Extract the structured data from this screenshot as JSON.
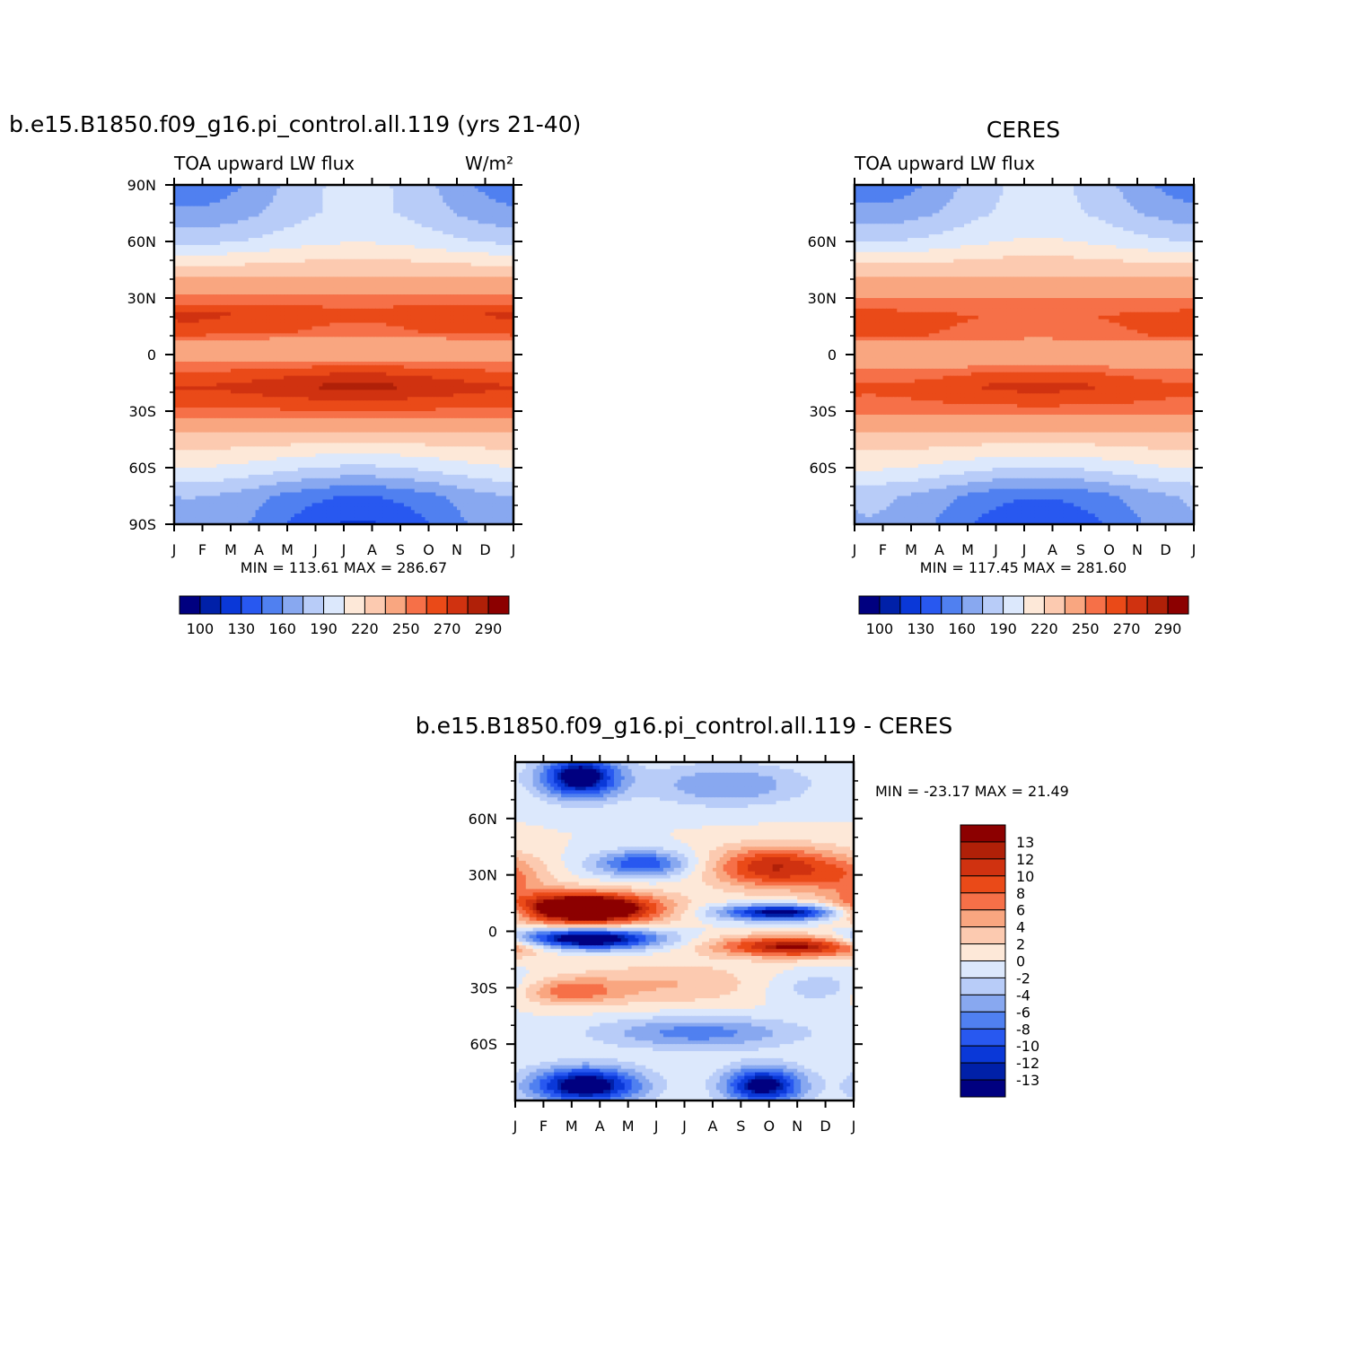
{
  "chart_data": [
    {
      "type": "heatmap",
      "title": "b.e15.B1850.f09_g16.pi_control.all.119 (yrs 21-40)",
      "subtitle_left": "TOA upward LW flux",
      "units": "W/m²",
      "stats": "MIN =  113.61  MAX =  286.67",
      "x_ticks": [
        "J",
        "F",
        "M",
        "A",
        "M",
        "J",
        "J",
        "A",
        "S",
        "O",
        "N",
        "D",
        "J"
      ],
      "y_ticks": [
        "90N",
        "60N",
        "30N",
        "0",
        "30S",
        "60S",
        "90S"
      ],
      "lat_profile": [
        {
          "lat": 90,
          "v": 172
        },
        {
          "lat": 75,
          "v": 178
        },
        {
          "lat": 60,
          "v": 195
        },
        {
          "lat": 45,
          "v": 228
        },
        {
          "lat": 30,
          "v": 252
        },
        {
          "lat": 22,
          "v": 268
        },
        {
          "lat": 12,
          "v": 262
        },
        {
          "lat": 5,
          "v": 238
        },
        {
          "lat": 0,
          "v": 240
        },
        {
          "lat": -8,
          "v": 262
        },
        {
          "lat": -17,
          "v": 277
        },
        {
          "lat": -28,
          "v": 262
        },
        {
          "lat": -40,
          "v": 238
        },
        {
          "lat": -52,
          "v": 212
        },
        {
          "lat": -62,
          "v": 192
        },
        {
          "lat": -75,
          "v": 160
        },
        {
          "lat": -90,
          "v": 150
        }
      ],
      "colorbar": {
        "colors": [
          "#000080",
          "#0020a8",
          "#0a38d8",
          "#2858f0",
          "#5080f0",
          "#88a8f0",
          "#b8ccf8",
          "#dce8fc",
          "#fde8d8",
          "#fccab0",
          "#f9a680",
          "#f67048",
          "#ea4a18",
          "#d03210",
          "#b02008",
          "#8c0000"
        ],
        "labels": [
          "100",
          "130",
          "160",
          "190",
          "220",
          "250",
          "270",
          "290"
        ]
      }
    },
    {
      "type": "heatmap",
      "title": "CERES",
      "subtitle_left": "TOA upward LW flux",
      "stats": "MIN =  117.45  MAX =  281.60",
      "x_ticks": [
        "J",
        "F",
        "M",
        "A",
        "M",
        "J",
        "J",
        "A",
        "S",
        "O",
        "N",
        "D",
        "J"
      ],
      "y_ticks": [
        "60N",
        "30N",
        "0",
        "30S",
        "60S"
      ],
      "lat_profile": [
        {
          "lat": 90,
          "v": 172
        },
        {
          "lat": 75,
          "v": 180
        },
        {
          "lat": 60,
          "v": 198
        },
        {
          "lat": 45,
          "v": 230
        },
        {
          "lat": 30,
          "v": 250
        },
        {
          "lat": 20,
          "v": 262
        },
        {
          "lat": 10,
          "v": 258
        },
        {
          "lat": 3,
          "v": 236
        },
        {
          "lat": -3,
          "v": 240
        },
        {
          "lat": -10,
          "v": 258
        },
        {
          "lat": -17,
          "v": 268
        },
        {
          "lat": -28,
          "v": 258
        },
        {
          "lat": -40,
          "v": 236
        },
        {
          "lat": -52,
          "v": 214
        },
        {
          "lat": -62,
          "v": 194
        },
        {
          "lat": -75,
          "v": 162
        },
        {
          "lat": -90,
          "v": 152
        }
      ],
      "colorbar": {
        "colors": [
          "#000080",
          "#0020a8",
          "#0a38d8",
          "#2858f0",
          "#5080f0",
          "#88a8f0",
          "#b8ccf8",
          "#dce8fc",
          "#fde8d8",
          "#fccab0",
          "#f9a680",
          "#f67048",
          "#ea4a18",
          "#d03210",
          "#b02008",
          "#8c0000"
        ],
        "labels": [
          "100",
          "130",
          "160",
          "190",
          "220",
          "250",
          "270",
          "290"
        ]
      }
    },
    {
      "type": "heatmap",
      "title": "b.e15.B1850.f09_g16.pi_control.all.119 - CERES",
      "stats": "MIN = -23.17  MAX =  21.49",
      "x_ticks": [
        "J",
        "F",
        "M",
        "A",
        "M",
        "J",
        "J",
        "A",
        "S",
        "O",
        "N",
        "D",
        "J"
      ],
      "y_ticks": [
        "60N",
        "30N",
        "0",
        "30S",
        "60S"
      ],
      "blobs": [
        {
          "month": 2.5,
          "lat": 12,
          "amp": 22,
          "sm": 1.8,
          "sl": 6
        },
        {
          "month": 2.5,
          "lat": -4,
          "amp": -18,
          "sm": 1.8,
          "sl": 4
        },
        {
          "month": 9.2,
          "lat": 34,
          "amp": 12,
          "sm": 1.6,
          "sl": 8
        },
        {
          "month": 9.5,
          "lat": 10,
          "amp": -15,
          "sm": 1.6,
          "sl": 3
        },
        {
          "month": 10.0,
          "lat": -8,
          "amp": 14,
          "sm": 2.0,
          "sl": 4
        },
        {
          "month": 2.3,
          "lat": 82,
          "amp": -16,
          "sm": 1.0,
          "sl": 8
        },
        {
          "month": 4.5,
          "lat": 36,
          "amp": -10,
          "sm": 1.2,
          "sl": 5
        },
        {
          "month": 2.5,
          "lat": -82,
          "amp": -16,
          "sm": 1.4,
          "sl": 7
        },
        {
          "month": 8.8,
          "lat": -82,
          "amp": -15,
          "sm": 1.0,
          "sl": 7
        },
        {
          "month": 1.8,
          "lat": -32,
          "amp": 7,
          "sm": 1.3,
          "sl": 5
        },
        {
          "month": 6.5,
          "lat": -54,
          "amp": -7,
          "sm": 2.5,
          "sl": 6
        },
        {
          "month": 7.5,
          "lat": 78,
          "amp": -6,
          "sm": 2.0,
          "sl": 8
        },
        {
          "month": 11.8,
          "lat": 28,
          "amp": 5,
          "sm": 1.0,
          "sl": 8
        },
        {
          "month": 5.5,
          "lat": -28,
          "amp": 4,
          "sm": 2.5,
          "sl": 8
        },
        {
          "month": 11.0,
          "lat": -30,
          "amp": -4,
          "sm": 1.5,
          "sl": 6
        }
      ],
      "colorbar": {
        "colors": [
          "#000080",
          "#0020a8",
          "#0a38d8",
          "#2858f0",
          "#5080f0",
          "#88a8f0",
          "#b8ccf8",
          "#dce8fc",
          "#fde8d8",
          "#fccab0",
          "#f9a680",
          "#f67048",
          "#ea4a18",
          "#d03210",
          "#b02008",
          "#8c0000"
        ],
        "labels": [
          "13",
          "12",
          "10",
          "8",
          "6",
          "4",
          "2",
          "0",
          "-2",
          "-4",
          "-6",
          "-8",
          "-10",
          "-12",
          "-13"
        ]
      }
    }
  ]
}
